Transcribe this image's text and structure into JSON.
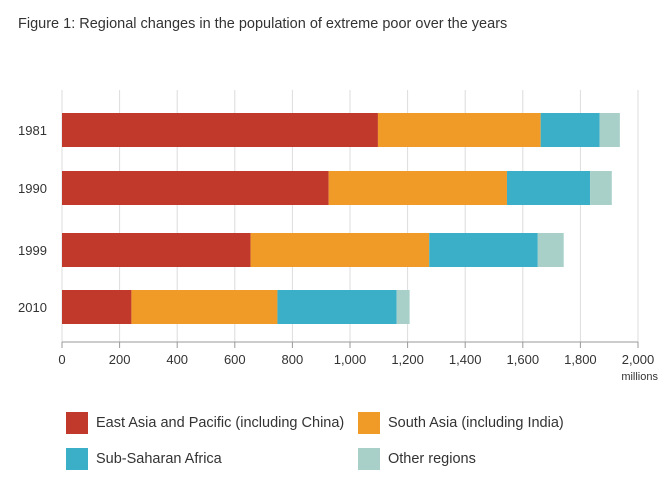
{
  "figure_title": "Figure 1: Regional changes in the population of extreme poor over the years",
  "chart_data": {
    "type": "bar",
    "orientation": "horizontal",
    "stacked": true,
    "categories": [
      "1981",
      "1990",
      "1999",
      "2010"
    ],
    "series": [
      {
        "name": "East Asia and Pacific (including China)",
        "color": "#c0392b",
        "values": [
          1097,
          926,
          655,
          241
        ]
      },
      {
        "name": "South Asia (including India)",
        "color": "#f09a28",
        "values": [
          565,
          619,
          620,
          507
        ]
      },
      {
        "name": "Sub-Saharan Africa",
        "color": "#3baec8",
        "values": [
          205,
          289,
          377,
          414
        ]
      },
      {
        "name": "Other regions",
        "color": "#a8d0c8",
        "values": [
          70,
          75,
          90,
          45
        ]
      }
    ],
    "x_ticks": [
      "0",
      "200",
      "400",
      "600",
      "800",
      "1,000",
      "1,200",
      "1,400",
      "1,600",
      "1,800",
      "2,000"
    ],
    "xlim": [
      0,
      2000
    ],
    "x_unit": "millions",
    "grid": "vertical",
    "legend_position": "bottom"
  }
}
